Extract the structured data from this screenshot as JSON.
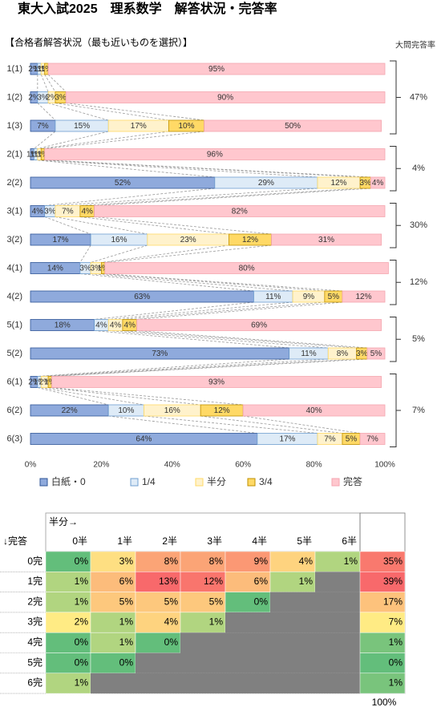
{
  "chart_data": {
    "type": "bar",
    "orientation": "horizontal",
    "stacked": true,
    "title": "東大入試2025　理系数学　解答状況・完答率",
    "subtitle": "【合格者解答状況（最も近いものを選択）】",
    "categories": [
      "1(1)",
      "1(2)",
      "1(3)",
      "2(1)",
      "2(2)",
      "3(1)",
      "3(2)",
      "4(1)",
      "4(2)",
      "5(1)",
      "5(2)",
      "6(1)",
      "6(2)",
      "6(3)"
    ],
    "series": [
      {
        "name": "白紙・0",
        "color": "#8faadc",
        "border": "#2f5597",
        "values": [
          2,
          2,
          7,
          1,
          52,
          4,
          17,
          14,
          63,
          18,
          73,
          2,
          22,
          64
        ],
        "value_labels": [
          "2%",
          "2%",
          "7%",
          "1%",
          "52%",
          "4%",
          "17%",
          "14%",
          "63%",
          "18%",
          "73%",
          "2%",
          "22%",
          "64%"
        ]
      },
      {
        "name": "1/4",
        "color": "#deebf7",
        "border": "#6f9fd0",
        "values": [
          1,
          3,
          15,
          1,
          29,
          3,
          16,
          3,
          11,
          4,
          11,
          1,
          10,
          17
        ],
        "value_labels": [
          "1%",
          "3%",
          "15%",
          "1%",
          "29%",
          "3%",
          "16%",
          "3%",
          "11%",
          "4%",
          "11%",
          "1%",
          "10%",
          "17%"
        ]
      },
      {
        "name": "半分",
        "color": "#fff2cc",
        "border": "#ffd966",
        "values": [
          1,
          2,
          17,
          1,
          12,
          7,
          23,
          3,
          9,
          4,
          8,
          2,
          16,
          7
        ],
        "value_labels": [
          "1%",
          "2%",
          "17%",
          "1%",
          "12%",
          "7%",
          "23%",
          "3%",
          "9%",
          "4%",
          "8%",
          "2%",
          "16%",
          "7%"
        ]
      },
      {
        "name": "3/4",
        "color": "#ffd966",
        "border": "#bf9000",
        "values": [
          1,
          3,
          10,
          1,
          3,
          4,
          12,
          1,
          5,
          4,
          3,
          1,
          12,
          5
        ],
        "value_labels": [
          "1%",
          "3%",
          "10%",
          "1%",
          "3%",
          "4%",
          "12%",
          "1%",
          "5%",
          "4%",
          "3%",
          "1%",
          "12%",
          "5%"
        ]
      },
      {
        "name": "完答",
        "color": "#ffc7ce",
        "border": "#f4a6b0",
        "values": [
          95,
          90,
          50,
          96,
          4,
          82,
          31,
          80,
          12,
          69,
          5,
          93,
          40,
          7
        ],
        "value_labels": [
          "95%",
          "90%",
          "50%",
          "96%",
          "4%",
          "82%",
          "31%",
          "80%",
          "12%",
          "69%",
          "5%",
          "93%",
          "40%",
          "7%"
        ]
      }
    ],
    "xlim": [
      0,
      100
    ],
    "xticks": [
      {
        "value": 0,
        "label": "0%"
      },
      {
        "value": 20,
        "label": "20%"
      },
      {
        "value": 40,
        "label": "40%"
      },
      {
        "value": 60,
        "label": "60%"
      },
      {
        "value": 80,
        "label": "80%"
      },
      {
        "value": 100,
        "label": "100%"
      }
    ],
    "legend": "bottom",
    "group_title": "大問完答率",
    "group_values": [
      47,
      4,
      30,
      12,
      5,
      7
    ],
    "group_value_labels": [
      "47%",
      "4%",
      "30%",
      "12%",
      "5%",
      "7%"
    ]
  },
  "table": {
    "corner_col": "半分→",
    "corner_row": "↓完答",
    "columns": [
      "0半",
      "1半",
      "2半",
      "3半",
      "4半",
      "5半",
      "6半"
    ],
    "rows": [
      {
        "label": "0完",
        "cells": [
          "0%",
          "3%",
          "8%",
          "8%",
          "9%",
          "4%",
          "1%"
        ],
        "total": "35%"
      },
      {
        "label": "1完",
        "cells": [
          "1%",
          "6%",
          "13%",
          "12%",
          "6%",
          "1%"
        ],
        "total": "39%"
      },
      {
        "label": "2完",
        "cells": [
          "1%",
          "5%",
          "5%",
          "5%",
          "0%"
        ],
        "total": "17%"
      },
      {
        "label": "3完",
        "cells": [
          "2%",
          "1%",
          "4%",
          "1%"
        ],
        "total": "7%"
      },
      {
        "label": "4完",
        "cells": [
          "0%",
          "1%",
          "0%"
        ],
        "total": "1%"
      },
      {
        "label": "5完",
        "cells": [
          "0%",
          "0%"
        ],
        "total": "0%"
      },
      {
        "label": "6完",
        "cells": [
          "1%"
        ],
        "total": "1%"
      }
    ],
    "grand_total": "100%"
  }
}
